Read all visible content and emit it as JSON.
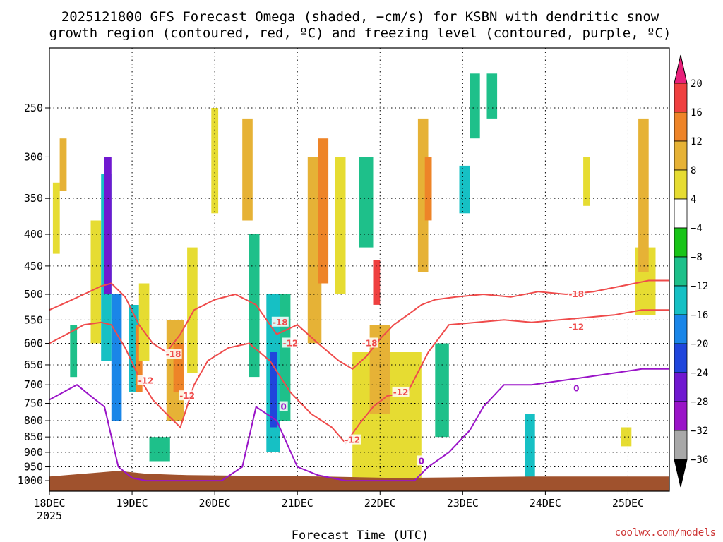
{
  "chart_data": {
    "type": "heatmap",
    "title_lines": [
      "2025121800 GFS Forecast Omega (shaded, −cm/s) for KSBN with dendritic snow",
      "growth region (contoured, red, ºC) and freezing level (contoured, purple, ºC)"
    ],
    "xlabel": "Forecast Time (UTC)",
    "credit": "coolwx.com/models",
    "x_ticks": [
      "18DEC",
      "19DEC",
      "20DEC",
      "21DEC",
      "22DEC",
      "23DEC",
      "24DEC",
      "25DEC"
    ],
    "x_year": "2025",
    "x_range_hours": [
      0,
      180
    ],
    "y_label_values": [
      250,
      300,
      350,
      400,
      450,
      500,
      550,
      600,
      650,
      700,
      750,
      800,
      850,
      900,
      950,
      1000
    ],
    "y_range_hpa": [
      200,
      1040
    ],
    "colorbar": {
      "labels": [
        "20",
        "16",
        "12",
        "8",
        "4",
        "−4",
        "−8",
        "−12",
        "−16",
        "−20",
        "−24",
        "−28",
        "−32",
        "−36"
      ],
      "colors": [
        "#e8207a",
        "#ef4040",
        "#ee8428",
        "#e6b236",
        "#e6dc32",
        "#ffffff",
        "#18c418",
        "#1ec08a",
        "#16c0c4",
        "#1a86e8",
        "#2046dc",
        "#7018d0",
        "#9a14c8",
        "#a8a8a8",
        "#000000"
      ]
    },
    "terrain_color": "#a0522d",
    "contours": {
      "red_levels": [
        "-18",
        "-12"
      ],
      "purple_levels": [
        "0"
      ],
      "red_color": "#ef4b4b",
      "purple_color": "#9a14c8"
    },
    "shading_patches": [
      {
        "t": 1,
        "p": 330,
        "w": 2,
        "h": 100,
        "v": 4
      },
      {
        "t": 3,
        "p": 280,
        "w": 2,
        "h": 60,
        "v": 8
      },
      {
        "t": 6,
        "p": 560,
        "w": 2,
        "h": 120,
        "v": -8
      },
      {
        "t": 12,
        "p": 380,
        "w": 3,
        "h": 220,
        "v": 4
      },
      {
        "t": 15,
        "p": 320,
        "w": 3,
        "h": 320,
        "v": -12
      },
      {
        "t": 16,
        "p": 300,
        "w": 2,
        "h": 200,
        "v": -24
      },
      {
        "t": 18,
        "p": 500,
        "w": 3,
        "h": 300,
        "v": -16
      },
      {
        "t": 23,
        "p": 520,
        "w": 3,
        "h": 200,
        "v": -12
      },
      {
        "t": 25,
        "p": 560,
        "w": 2,
        "h": 160,
        "v": 12
      },
      {
        "t": 26,
        "p": 480,
        "w": 3,
        "h": 160,
        "v": 4
      },
      {
        "t": 29,
        "p": 850,
        "w": 6,
        "h": 80,
        "v": -8
      },
      {
        "t": 34,
        "p": 550,
        "w": 5,
        "h": 250,
        "v": 8
      },
      {
        "t": 36,
        "p": 600,
        "w": 3,
        "h": 120,
        "v": 12
      },
      {
        "t": 40,
        "p": 420,
        "w": 3,
        "h": 250,
        "v": 4
      },
      {
        "t": 47,
        "p": 250,
        "w": 2,
        "h": 120,
        "v": 4
      },
      {
        "t": 56,
        "p": 260,
        "w": 3,
        "h": 120,
        "v": 8
      },
      {
        "t": 58,
        "p": 400,
        "w": 3,
        "h": 280,
        "v": -8
      },
      {
        "t": 63,
        "p": 500,
        "w": 4,
        "h": 400,
        "v": -12
      },
      {
        "t": 64,
        "p": 620,
        "w": 2,
        "h": 200,
        "v": -20
      },
      {
        "t": 67,
        "p": 500,
        "w": 3,
        "h": 300,
        "v": -8
      },
      {
        "t": 75,
        "p": 300,
        "w": 4,
        "h": 300,
        "v": 8
      },
      {
        "t": 78,
        "p": 280,
        "w": 3,
        "h": 200,
        "v": 12
      },
      {
        "t": 83,
        "p": 300,
        "w": 3,
        "h": 200,
        "v": 4
      },
      {
        "t": 88,
        "p": 620,
        "w": 20,
        "h": 380,
        "v": 4
      },
      {
        "t": 93,
        "p": 560,
        "w": 6,
        "h": 220,
        "v": 8
      },
      {
        "t": 94,
        "p": 440,
        "w": 2,
        "h": 80,
        "v": 16
      },
      {
        "t": 90,
        "p": 300,
        "w": 4,
        "h": 120,
        "v": -8
      },
      {
        "t": 107,
        "p": 260,
        "w": 3,
        "h": 200,
        "v": 8
      },
      {
        "t": 109,
        "p": 300,
        "w": 2,
        "h": 80,
        "v": 12
      },
      {
        "t": 112,
        "p": 600,
        "w": 4,
        "h": 250,
        "v": -8
      },
      {
        "t": 119,
        "p": 310,
        "w": 3,
        "h": 60,
        "v": -12
      },
      {
        "t": 122,
        "p": 220,
        "w": 3,
        "h": 60,
        "v": -8
      },
      {
        "t": 127,
        "p": 220,
        "w": 3,
        "h": 40,
        "v": -8
      },
      {
        "t": 138,
        "p": 780,
        "w": 3,
        "h": 280,
        "v": -12
      },
      {
        "t": 155,
        "p": 300,
        "w": 2,
        "h": 60,
        "v": 4
      },
      {
        "t": 170,
        "p": 420,
        "w": 6,
        "h": 120,
        "v": 4
      },
      {
        "t": 171,
        "p": 260,
        "w": 3,
        "h": 200,
        "v": 8
      },
      {
        "t": 166,
        "p": 820,
        "w": 3,
        "h": 60,
        "v": 4
      }
    ],
    "red_minus18_hours": [
      0,
      5,
      10,
      15,
      18,
      22,
      26,
      30,
      34,
      38,
      42,
      48,
      54,
      60,
      66,
      72,
      78,
      84,
      88,
      92,
      96,
      100,
      104,
      108,
      112,
      118,
      126,
      134,
      142,
      150,
      158,
      166,
      174,
      180
    ],
    "red_minus18_hpa": [
      530,
      515,
      500,
      485,
      480,
      505,
      560,
      600,
      620,
      580,
      530,
      510,
      500,
      520,
      580,
      560,
      600,
      640,
      660,
      630,
      590,
      560,
      540,
      520,
      510,
      505,
      500,
      505,
      495,
      500,
      495,
      485,
      475,
      475
    ],
    "red_minus12_hours": [
      0,
      5,
      10,
      15,
      18,
      22,
      26,
      30,
      34,
      38,
      42,
      46,
      52,
      58,
      64,
      70,
      76,
      82,
      86,
      90,
      94,
      98,
      104,
      110,
      116,
      124,
      132,
      140,
      148,
      156,
      164,
      172,
      180
    ],
    "red_minus12_hpa": [
      600,
      580,
      560,
      555,
      560,
      610,
      680,
      740,
      780,
      820,
      700,
      640,
      610,
      600,
      640,
      720,
      780,
      820,
      870,
      810,
      760,
      730,
      720,
      620,
      560,
      555,
      550,
      555,
      550,
      545,
      540,
      530,
      530
    ],
    "freezing_0_hours": [
      0,
      4,
      8,
      12,
      16,
      20,
      24,
      28,
      40,
      50,
      56,
      60,
      66,
      72,
      78,
      86,
      96,
      106,
      110,
      116,
      122,
      126,
      132,
      140,
      148,
      156,
      164,
      172,
      180
    ],
    "freezing_0_hpa": [
      740,
      720,
      700,
      730,
      760,
      950,
      990,
      1000,
      1000,
      1000,
      950,
      760,
      800,
      950,
      980,
      1000,
      1000,
      1000,
      950,
      900,
      830,
      760,
      700,
      700,
      690,
      680,
      670,
      660,
      660
    ],
    "terrain_hpa": 985
  },
  "contour_labels": {
    "red": [
      {
        "text": "-18",
        "t": 67,
        "p": 555
      },
      {
        "text": "-12",
        "t": 70,
        "p": 600
      },
      {
        "text": "-18",
        "t": 93,
        "p": 600
      },
      {
        "text": "-12",
        "t": 102,
        "p": 720
      },
      {
        "text": "-12",
        "t": 88,
        "p": 860
      },
      {
        "text": "-18",
        "t": 36,
        "p": 625
      },
      {
        "text": "-12",
        "t": 28,
        "p": 690
      },
      {
        "text": "-12",
        "t": 40,
        "p": 730
      },
      {
        "text": "-18",
        "t": 153,
        "p": 500
      },
      {
        "text": "-12",
        "t": 153,
        "p": 565
      }
    ],
    "purple": [
      {
        "text": "0",
        "t": 68,
        "p": 760
      },
      {
        "text": "0",
        "t": 108,
        "p": 930
      },
      {
        "text": "0",
        "t": 153,
        "p": 710
      }
    ]
  }
}
